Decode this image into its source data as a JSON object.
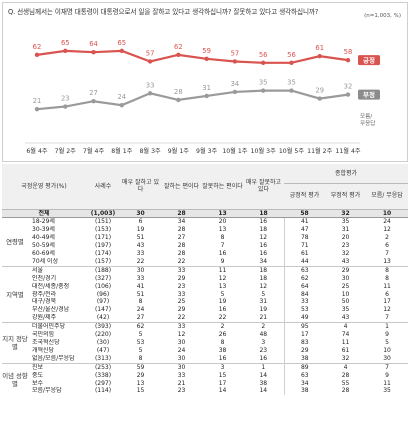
{
  "question": "Q. 선생님께서는 이재명 대통령이 대통령으로서 일을 잘하고 있다고 생각하십니까? 잘못하고 있다고 생각하십니까?",
  "sample_note": "(n=1,003, %)",
  "colors": {
    "positive": "#d9534f",
    "negative": "#9a9a9a",
    "positive_label_bg": "#d9534f",
    "negative_label_bg": "#8c8c8c"
  },
  "chart_data": {
    "type": "line",
    "categories": [
      "6월 4주",
      "7월 2주",
      "7월 4주",
      "8월 1주",
      "8월 3주",
      "9월 1주",
      "9월 3주",
      "10월 1주",
      "10월 3주",
      "10월 5주",
      "11월 2주",
      "11월 4주"
    ],
    "series": [
      {
        "name": "긍정",
        "values": [
          62,
          65,
          64,
          65,
          57,
          62,
          59,
          57,
          56,
          56,
          61,
          58
        ],
        "color": "#d9534f"
      },
      {
        "name": "부정",
        "values": [
          21,
          23,
          27,
          24,
          33,
          28,
          31,
          34,
          35,
          35,
          29,
          32
        ],
        "color": "#9a9a9a"
      }
    ],
    "legend_extra": [
      "모름/",
      "무응답"
    ],
    "ylim": [
      0,
      80
    ]
  },
  "table": {
    "col_header_group": "종합평가",
    "headers": [
      "국정운영 평가(%)",
      "사례수",
      "매우 잘하고 있다",
      "잘하는 편이다",
      "잘못하는 편이다",
      "매우 잘못하고 있다",
      "긍정적 평가",
      "부정적 평가",
      "모름/ 무응답"
    ],
    "total": {
      "label": "전체",
      "n": "(1,003)",
      "v": [
        "30",
        "28",
        "13",
        "18",
        "58",
        "32",
        "10"
      ]
    },
    "groups": [
      {
        "name": "연령별",
        "rows": [
          {
            "label": "18-29세",
            "n": "(151)",
            "v": [
              "6",
              "34",
              "20",
              "16",
              "41",
              "35",
              "24"
            ]
          },
          {
            "label": "30-39세",
            "n": "(153)",
            "v": [
              "19",
              "28",
              "13",
              "18",
              "47",
              "31",
              "12"
            ]
          },
          {
            "label": "40-49세",
            "n": "(171)",
            "v": [
              "51",
              "27",
              "8",
              "12",
              "78",
              "20",
              "2"
            ]
          },
          {
            "label": "50-59세",
            "n": "(197)",
            "v": [
              "43",
              "28",
              "7",
              "16",
              "71",
              "23",
              "6"
            ]
          },
          {
            "label": "60-69세",
            "n": "(174)",
            "v": [
              "33",
              "28",
              "16",
              "16",
              "61",
              "32",
              "7"
            ]
          },
          {
            "label": "70세 이상",
            "n": "(157)",
            "v": [
              "22",
              "22",
              "9",
              "34",
              "44",
              "43",
              "13"
            ]
          }
        ]
      },
      {
        "name": "지역별",
        "rows": [
          {
            "label": "서울",
            "n": "(188)",
            "v": [
              "30",
              "33",
              "11",
              "18",
              "63",
              "29",
              "8"
            ]
          },
          {
            "label": "인천/경기",
            "n": "(327)",
            "v": [
              "33",
              "29",
              "12",
              "18",
              "62",
              "30",
              "8"
            ]
          },
          {
            "label": "대전/세종/충청",
            "n": "(106)",
            "v": [
              "41",
              "23",
              "13",
              "12",
              "64",
              "25",
              "11"
            ]
          },
          {
            "label": "광주/전라",
            "n": "(96)",
            "v": [
              "51",
              "33",
              "5",
              "5",
              "84",
              "10",
              "6"
            ]
          },
          {
            "label": "대구/경북",
            "n": "(97)",
            "v": [
              "8",
              "25",
              "19",
              "31",
              "33",
              "50",
              "17"
            ]
          },
          {
            "label": "부산/울산/경남",
            "n": "(147)",
            "v": [
              "24",
              "29",
              "16",
              "19",
              "53",
              "35",
              "12"
            ]
          },
          {
            "label": "강원/제주",
            "n": "(42)",
            "v": [
              "27",
              "22",
              "22",
              "21",
              "49",
              "43",
              "7"
            ]
          }
        ]
      },
      {
        "name": "지지 정당별",
        "rows": [
          {
            "label": "더불어민주당",
            "n": "(393)",
            "v": [
              "62",
              "33",
              "2",
              "2",
              "95",
              "4",
              "1"
            ]
          },
          {
            "label": "국민의힘",
            "n": "(220)",
            "v": [
              "5",
              "12",
              "26",
              "48",
              "17",
              "74",
              "9"
            ]
          },
          {
            "label": "조국혁신당",
            "n": "(30)",
            "v": [
              "53",
              "30",
              "8",
              "3",
              "83",
              "11",
              "5"
            ]
          },
          {
            "label": "개혁신당",
            "n": "(47)",
            "v": [
              "5",
              "24",
              "38",
              "23",
              "29",
              "61",
              "10"
            ]
          },
          {
            "label": "없음/모름/무응답",
            "n": "(313)",
            "v": [
              "8",
              "30",
              "16",
              "16",
              "38",
              "32",
              "30"
            ]
          }
        ]
      },
      {
        "name": "이념 성향별",
        "rows": [
          {
            "label": "진보",
            "n": "(253)",
            "v": [
              "59",
              "30",
              "3",
              "1",
              "89",
              "4",
              "7"
            ]
          },
          {
            "label": "중도",
            "n": "(338)",
            "v": [
              "29",
              "33",
              "15",
              "14",
              "63",
              "28",
              "9"
            ]
          },
          {
            "label": "보수",
            "n": "(297)",
            "v": [
              "13",
              "21",
              "17",
              "38",
              "34",
              "55",
              "11"
            ]
          },
          {
            "label": "모름/무응답",
            "n": "(114)",
            "v": [
              "15",
              "23",
              "14",
              "14",
              "38",
              "28",
              "35"
            ]
          }
        ]
      }
    ]
  }
}
